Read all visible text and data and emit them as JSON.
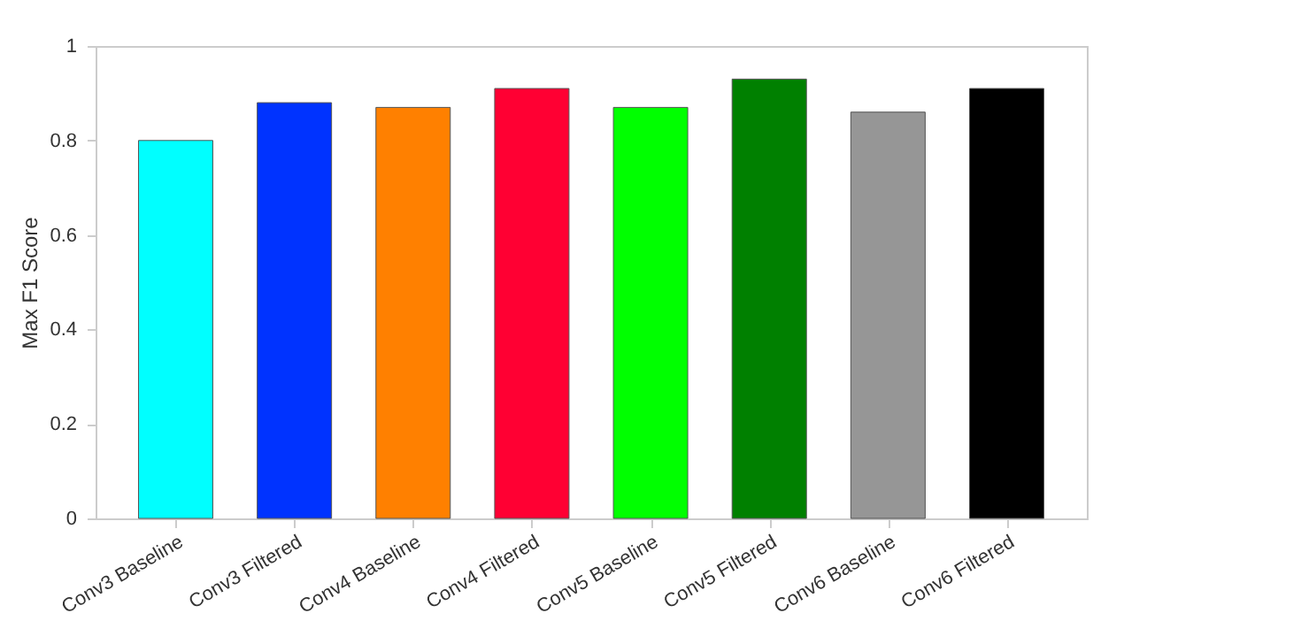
{
  "chart_data": {
    "type": "bar",
    "ylabel": "Max F1 Score",
    "categories": [
      "Conv3 Baseline",
      "Conv3 Filtered",
      "Conv4 Baseline",
      "Conv4 Filtered",
      "Conv5 Baseline",
      "Conv5 Filtered",
      "Conv6 Baseline",
      "Conv6 Filtered"
    ],
    "values": [
      0.8,
      0.88,
      0.87,
      0.91,
      0.87,
      0.93,
      0.86,
      0.91
    ],
    "colors": [
      "#00ffff",
      "#0033ff",
      "#ff8000",
      "#ff0033",
      "#00ff00",
      "#008000",
      "#969696",
      "#000000"
    ],
    "ylim": [
      0,
      1
    ],
    "yticks": [
      0,
      0.2,
      0.4,
      0.6,
      0.8,
      1
    ],
    "grid": false
  }
}
